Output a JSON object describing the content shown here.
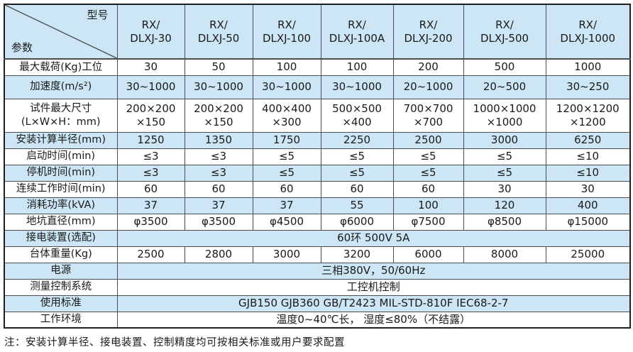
{
  "header": {
    "corner_top_right": "型号",
    "corner_bottom_left": "参数",
    "columns": [
      "RX/\nDLXJ-30",
      "RX/\nDLXJ-50",
      "RX/\nDLXJ-100",
      "RX/\nDLXJ-100A",
      "RX/\nDLXJ-200",
      "RX/\nDLXJ-500",
      "RX/\nDLXJ-1000"
    ]
  },
  "rows": [
    {
      "label": "最大载荷(Kg)工位",
      "values": [
        "30",
        "50",
        "100",
        "100",
        "200",
        "500",
        "1000"
      ]
    },
    {
      "label": "加速度(m/s²)",
      "values": [
        "30~1000",
        "30~1000",
        "30~1000",
        "30~1000",
        "20~1000",
        "20~500",
        "30~250"
      ]
    },
    {
      "label": "试件最大尺寸\n(L×W×H：mm)",
      "values": [
        "200×200\n×150",
        "200×200\n×150",
        "400×400\n×300",
        "500×500\n×400",
        "700×700\n×700",
        "1000×1000\n×1000",
        "1200×1200\n×1200"
      ]
    },
    {
      "label": "安装计算半径(mm)",
      "values": [
        "1250",
        "1350",
        "1750",
        "2250",
        "2500",
        "3000",
        "6250"
      ]
    },
    {
      "label": "启动时间(min)",
      "values": [
        "≤3",
        "≤3",
        "≤5",
        "≤5",
        "≤5",
        "≤5",
        "≤10"
      ]
    },
    {
      "label": "停机时间(min)",
      "values": [
        "≤3",
        "≤3",
        "≤5",
        "≤5",
        "≤5",
        "≤5",
        "≤10"
      ]
    },
    {
      "label": "连续工作时间(min)",
      "values": [
        "60",
        "60",
        "60",
        "60",
        "60",
        "30",
        "30"
      ]
    },
    {
      "label": "消耗功率(kVA)",
      "values": [
        "37",
        "37",
        "37",
        "55",
        "100",
        "120",
        "400"
      ]
    },
    {
      "label": "地坑直径(mm)",
      "values": [
        "φ3500",
        "φ3500",
        "φ4500",
        "φ6000",
        "φ7500",
        "φ8500",
        "φ15000"
      ]
    },
    {
      "label": "接电装置(选配)",
      "span": "60环  500V  5A"
    },
    {
      "label": "台体重量(Kg)",
      "values": [
        "2500",
        "2800",
        "3000",
        "3200",
        "6000",
        "8000",
        "25000"
      ]
    },
    {
      "label": "电源",
      "span": "三相380V，50/60Hz"
    },
    {
      "label": "测量控制系统",
      "span": "工控机控制"
    },
    {
      "label": "使用标准",
      "span": "GJB150  GJB360 GB/T2423  MIL-STD-810F  IEC68-2-7"
    },
    {
      "label": "工作环境",
      "span": "温度0~40℃长，  湿度≤80%（不结露）"
    }
  ],
  "footnote": "注：安装计算半径、接电装置、控制精度均可按相关标准或用户要求配置",
  "colors": {
    "row_shade": "#cce6f5",
    "inner_border": "#4d4d4d",
    "outer_border": "#1f1f1f",
    "text": "#1a1a1a"
  }
}
